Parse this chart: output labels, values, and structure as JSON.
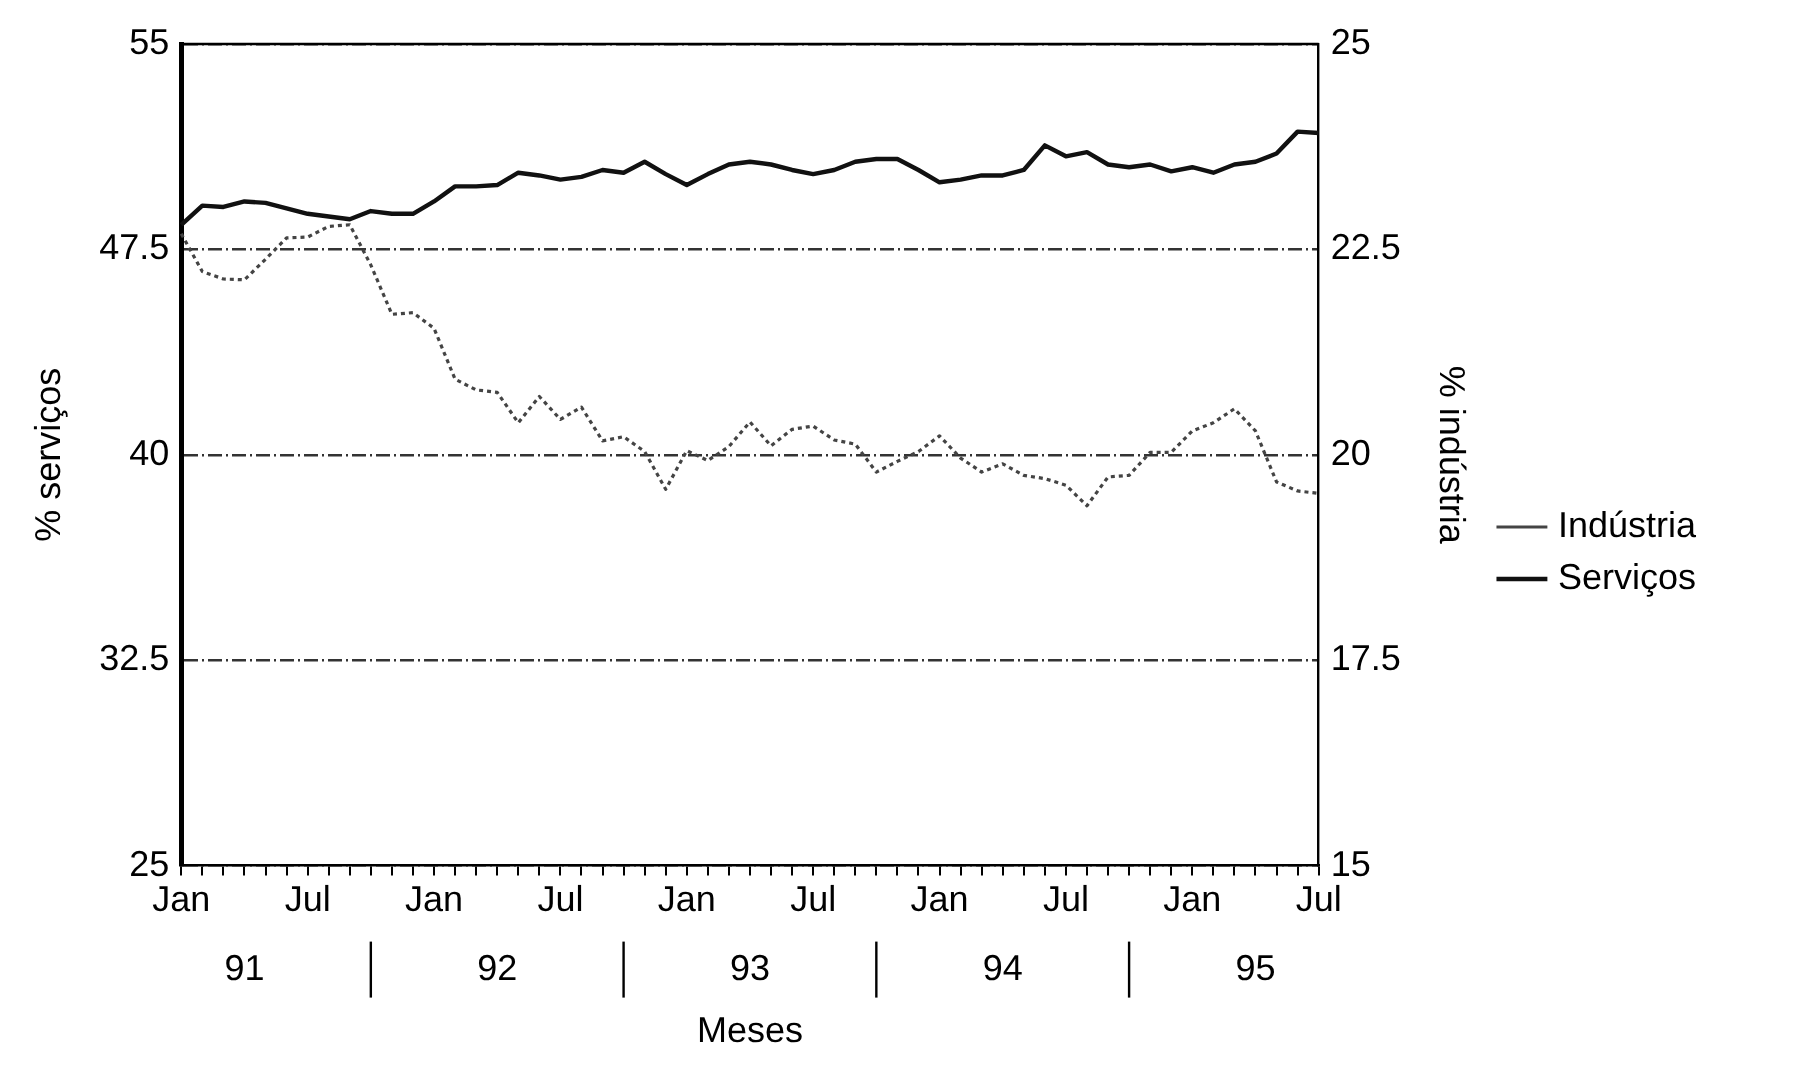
{
  "chart_data": {
    "type": "line",
    "xlabel": "Meses",
    "ylabel": "% serviços",
    "y2label": "% indústria",
    "categories": [
      "Jan",
      null,
      null,
      null,
      null,
      null,
      "Jul",
      null,
      null,
      null,
      null,
      null,
      "Jan",
      null,
      null,
      null,
      null,
      null,
      "Jul",
      null,
      null,
      null,
      null,
      null,
      "Jan",
      null,
      null,
      null,
      null,
      null,
      "Jul",
      null,
      null,
      null,
      null,
      null,
      "Jan",
      null,
      null,
      null,
      null,
      null,
      "Jul",
      null,
      null,
      null,
      null,
      null,
      "Jan",
      null,
      null,
      null,
      null,
      null,
      "Jul"
    ],
    "annotations": [
      "91",
      "92",
      "93",
      "94",
      "95"
    ],
    "series": [
      {
        "name": "Indústria",
        "color": "#444444",
        "axis": "y2",
        "line_style": "dotted",
        "values": [
          22.69,
          22.23,
          22.14,
          22.13,
          22.38,
          22.64,
          22.65,
          22.78,
          22.8,
          22.31,
          21.71,
          21.73,
          21.54,
          20.92,
          20.79,
          20.76,
          20.39,
          20.71,
          20.43,
          20.58,
          20.17,
          20.22,
          20.04,
          19.58,
          20.05,
          19.93,
          20.1,
          20.4,
          20.11,
          20.31,
          20.35,
          20.18,
          20.13,
          19.79,
          19.92,
          20.04,
          20.23,
          19.96,
          19.79,
          19.89,
          19.75,
          19.71,
          19.63,
          19.38,
          19.73,
          19.75,
          20.03,
          20.03,
          20.29,
          20.39,
          20.56,
          20.29,
          19.67,
          19.56,
          19.53
        ]
      },
      {
        "name": "Serviços",
        "color": "#111111",
        "line_style": "solid",
        "values": [
          48.4,
          49.1,
          49.05,
          49.25,
          49.2,
          49.0,
          48.8,
          48.7,
          48.6,
          48.9,
          48.8,
          48.8,
          49.25,
          49.8,
          49.8,
          49.85,
          50.3,
          50.2,
          50.05,
          50.15,
          50.4,
          50.3,
          50.7,
          50.25,
          49.85,
          50.25,
          50.6,
          50.7,
          50.6,
          50.4,
          50.25,
          50.4,
          50.7,
          50.8,
          50.8,
          50.4,
          49.95,
          50.05,
          50.2,
          50.2,
          50.4,
          51.3,
          50.9,
          51.05,
          50.6,
          50.5,
          50.6,
          50.35,
          50.5,
          50.3,
          50.6,
          50.7,
          51.0,
          51.8,
          51.75
        ]
      }
    ],
    "ylim": [
      25,
      55
    ],
    "yticks": [
      25,
      32.5,
      40,
      47.5,
      55
    ],
    "y2lim": [
      15,
      25
    ],
    "y2ticks": [
      15,
      17.5,
      20,
      22.5,
      25
    ],
    "grid": "y",
    "legend": "right",
    "marker": "none"
  }
}
